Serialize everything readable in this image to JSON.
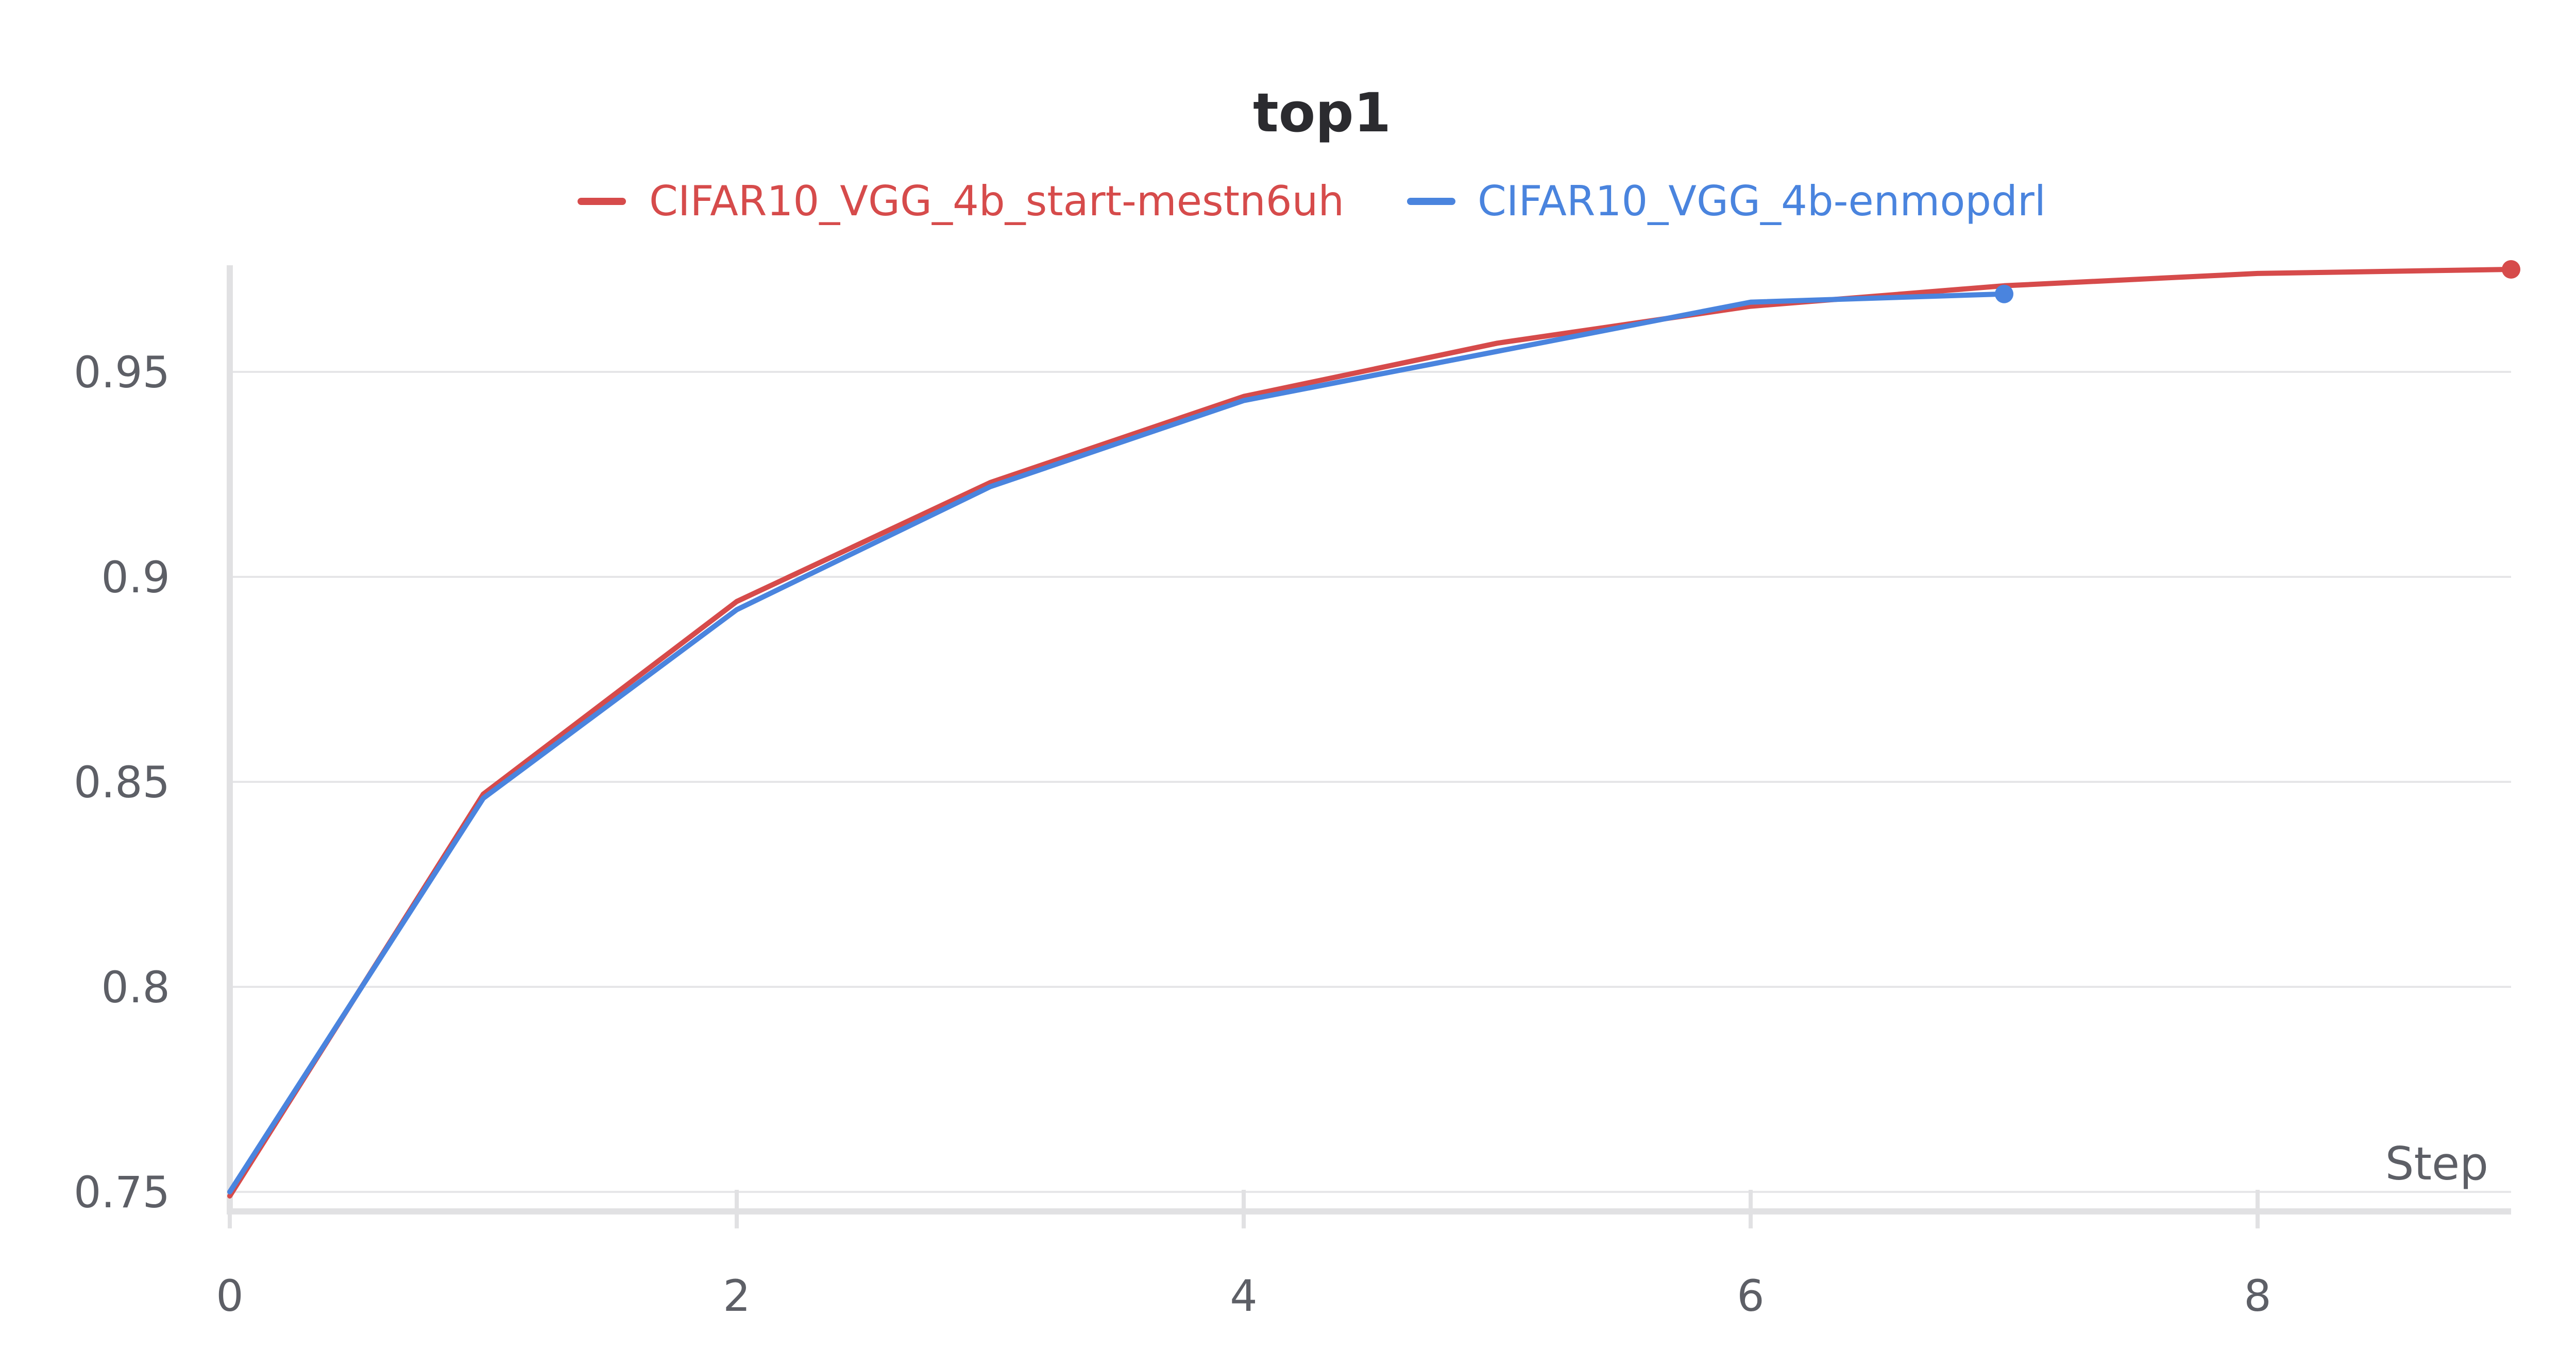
{
  "chart_data": {
    "type": "line",
    "title": "top1",
    "xlabel": "Step",
    "ylabel": "",
    "xlim": [
      0,
      9
    ],
    "ylim": [
      0.748,
      0.976
    ],
    "x_ticks": [
      0,
      2,
      4,
      6,
      8
    ],
    "y_ticks": [
      0.75,
      0.8,
      0.85,
      0.9,
      0.95
    ],
    "x_tick_labels": [
      "0",
      "2",
      "4",
      "6",
      "8"
    ],
    "y_tick_labels": [
      "0.75",
      "0.8",
      "0.85",
      "0.9",
      "0.95"
    ],
    "grid": true,
    "legend_position": "top-center",
    "series": [
      {
        "name": "CIFAR10_VGG_4b_start-mestn6uh",
        "color": "#d64b4b",
        "x": [
          0,
          1,
          2,
          3,
          4,
          5,
          6,
          7,
          8,
          9
        ],
        "y": [
          0.749,
          0.847,
          0.894,
          0.923,
          0.944,
          0.957,
          0.966,
          0.971,
          0.974,
          0.975
        ]
      },
      {
        "name": "CIFAR10_VGG_4b-enmopdrl",
        "color": "#4a84de",
        "x": [
          0,
          1,
          2,
          3,
          4,
          5,
          6,
          7
        ],
        "y": [
          0.75,
          0.846,
          0.892,
          0.922,
          0.943,
          0.955,
          0.967,
          0.969
        ]
      }
    ]
  }
}
